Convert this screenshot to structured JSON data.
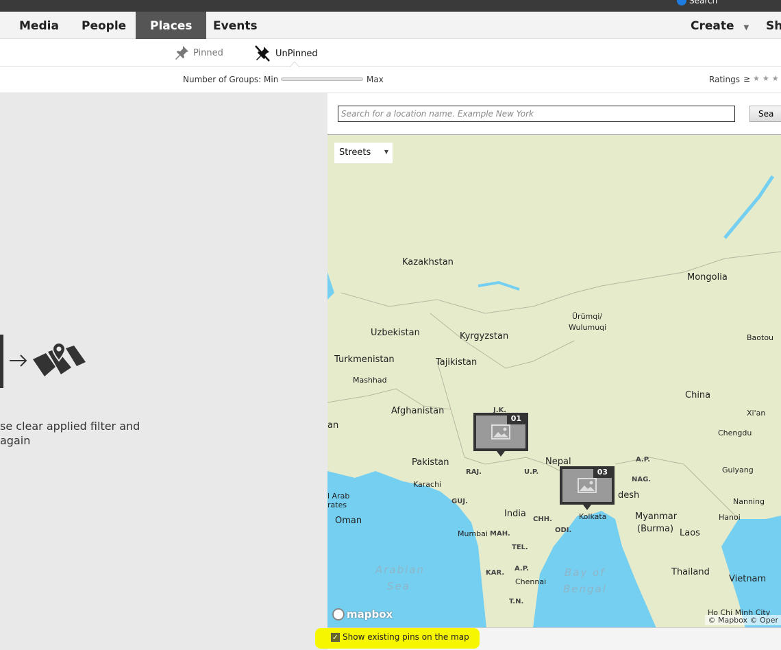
{
  "topbar": {
    "search_label": "Search"
  },
  "nav": {
    "tabs": [
      {
        "label": "Media"
      },
      {
        "label": "People"
      },
      {
        "label": "Places",
        "active": true
      },
      {
        "label": "Events"
      }
    ],
    "create_label": "Create",
    "share_label": "Sh"
  },
  "subtabs": {
    "pinned": "Pinned",
    "unpinned": "UnPinned",
    "active": "UnPinned"
  },
  "filter": {
    "groups_label": "Number of Groups:",
    "min": "Min",
    "max": "Max",
    "ratings_label": "Ratings",
    "ratings_op": "≥"
  },
  "empty_state": {
    "line1": "se clear applied filter and",
    "line2": "again"
  },
  "search": {
    "placeholder": "Search for a location name. Example New York",
    "button": "Sea"
  },
  "map": {
    "style_select": "Streets",
    "logo": "mapbox",
    "attribution": "© Mapbox © Oper",
    "labels": [
      "Kazakhstan",
      "Mongolia",
      "Ürümqi/",
      "Wulumuqi",
      "Uzbekistan",
      "Kyrgyzstan",
      "Baotou",
      "Turkmenistan",
      "Tajikistan",
      "Mashhad",
      "China",
      "Afghanistan",
      "Xi'an",
      "Chengdu",
      "Pakistan",
      "Nepal",
      "RAJ.",
      "U.P.",
      "A.P.",
      "NAG.",
      "Guiyang",
      "Karachi",
      "desh",
      "GUJ.",
      "India",
      "CHH.",
      "Kolkata",
      "Myanmar",
      "(Burma)",
      "Nanning",
      "Laos",
      "Hanoi",
      "Oman",
      "Mumbai",
      "MAH.",
      "ODI.",
      "TEL.",
      "Arabian",
      "Sea",
      "KAR.",
      "A.P.",
      "Chennai",
      "Bay of",
      "Bengal",
      "T.N.",
      "Thailand",
      "Vietnam",
      "Ho Chi Minh City",
      "J.K.",
      "an",
      "l Arab",
      "rates"
    ],
    "pins": [
      {
        "count": "01"
      },
      {
        "count": "03"
      }
    ],
    "colors": {
      "land": "#e6ebcc",
      "water": "#75cff0",
      "pin": "#333333"
    }
  },
  "footer": {
    "show_pins_label": "Show existing pins on the map",
    "show_pins_checked": true
  }
}
